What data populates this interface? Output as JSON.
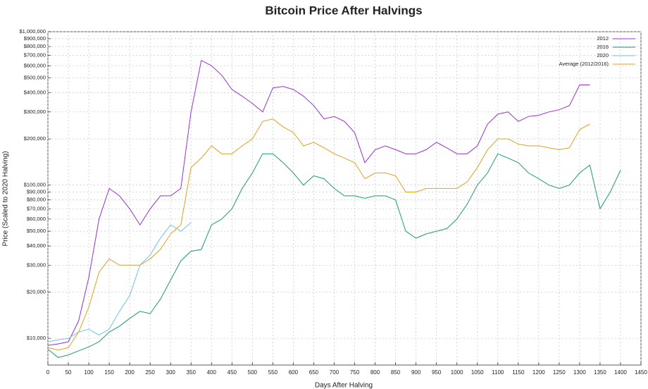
{
  "chart_data": {
    "type": "line",
    "title": "Bitcoin Price After Halvings",
    "x_label": "Days After Halving",
    "y_label": "Price (Scaled to 2020 Halving)",
    "log_y": true,
    "grid": true,
    "legend": "top-right",
    "xlim": [
      0,
      1450
    ],
    "xticks": [
      0,
      50,
      100,
      150,
      200,
      250,
      300,
      350,
      400,
      450,
      500,
      550,
      600,
      650,
      700,
      750,
      800,
      850,
      900,
      950,
      1000,
      1050,
      1100,
      1150,
      1200,
      1250,
      1300,
      1350,
      1400,
      1450
    ],
    "ylim": [
      6700,
      1000000
    ],
    "yticks": [
      {
        "value": 10000,
        "label": "$10,000"
      },
      {
        "value": 20000,
        "label": "$20,000"
      },
      {
        "value": 30000,
        "label": "$30,000"
      },
      {
        "value": 40000,
        "label": "$40,000"
      },
      {
        "value": 50000,
        "label": "$50,000"
      },
      {
        "value": 60000,
        "label": "$60,000"
      },
      {
        "value": 70000,
        "label": "$70,000"
      },
      {
        "value": 80000,
        "label": "$80,000"
      },
      {
        "value": 90000,
        "label": "$90,000"
      },
      {
        "value": 100000,
        "label": "$100,000"
      },
      {
        "value": 200000,
        "label": "$200,000"
      },
      {
        "value": 300000,
        "label": "$300,000"
      },
      {
        "value": 400000,
        "label": "$400,000"
      },
      {
        "value": 500000,
        "label": "$500,000"
      },
      {
        "value": 600000,
        "label": "$600,000"
      },
      {
        "value": 700000,
        "label": "$700,000"
      },
      {
        "value": 800000,
        "label": "$800,000"
      },
      {
        "value": 900000,
        "label": "$900,000"
      },
      {
        "value": 1000000,
        "label": "$1,000,000"
      }
    ],
    "x": [
      0,
      25,
      50,
      75,
      100,
      125,
      150,
      175,
      200,
      225,
      250,
      275,
      300,
      325,
      350,
      375,
      400,
      425,
      450,
      475,
      500,
      525,
      550,
      575,
      600,
      625,
      650,
      675,
      700,
      725,
      750,
      775,
      800,
      825,
      850,
      875,
      900,
      925,
      950,
      975,
      1000,
      1025,
      1050,
      1075,
      1100,
      1125,
      1150,
      1175,
      1200,
      1225,
      1250,
      1275,
      1300,
      1325,
      1350,
      1375,
      1400
    ],
    "series": [
      {
        "name": "2012",
        "color": "#9b30d0",
        "values": [
          9000,
          9200,
          9500,
          13000,
          25000,
          60000,
          95000,
          85000,
          70000,
          55000,
          70000,
          85000,
          85000,
          95000,
          300000,
          650000,
          600000,
          520000,
          420000,
          380000,
          340000,
          300000,
          430000,
          440000,
          420000,
          380000,
          330000,
          270000,
          280000,
          260000,
          220000,
          140000,
          170000,
          180000,
          170000,
          160000,
          160000,
          170000,
          190000,
          175000,
          160000,
          160000,
          180000,
          250000,
          290000,
          300000,
          260000,
          280000,
          285000,
          300000,
          310000,
          330000,
          450000,
          450000,
          null,
          null,
          null
        ]
      },
      {
        "name": "2016",
        "color": "#1a9a78",
        "values": [
          8500,
          7500,
          7800,
          8300,
          8800,
          9500,
          11000,
          12000,
          13500,
          15000,
          14500,
          18000,
          24000,
          32000,
          37000,
          38000,
          55000,
          60000,
          70000,
          95000,
          120000,
          160000,
          160000,
          140000,
          120000,
          100000,
          115000,
          110000,
          95000,
          85000,
          85000,
          82000,
          85000,
          85000,
          80000,
          50000,
          45000,
          48000,
          50000,
          52000,
          60000,
          75000,
          100000,
          120000,
          160000,
          150000,
          140000,
          120000,
          110000,
          100000,
          95000,
          100000,
          120000,
          135000,
          70000,
          90000,
          125000
        ]
      },
      {
        "name": "2020",
        "color": "#6ec3e8",
        "values": [
          9500,
          9800,
          10000,
          11000,
          11500,
          10500,
          11500,
          15000,
          19000,
          30000,
          35000,
          45000,
          55000,
          50000,
          57000,
          null,
          null,
          null,
          null,
          null,
          null,
          null,
          null,
          null,
          null,
          null,
          null,
          null,
          null,
          null,
          null,
          null,
          null,
          null,
          null,
          null,
          null,
          null,
          null,
          null,
          null,
          null,
          null,
          null,
          null,
          null,
          null,
          null,
          null,
          null,
          null,
          null,
          null,
          null,
          null,
          null,
          null
        ]
      },
      {
        "name": "Average (2012/2016)",
        "color": "#e0a020",
        "values": [
          8700,
          8400,
          8700,
          11000,
          16000,
          27000,
          33000,
          30000,
          30000,
          30000,
          33000,
          38000,
          48000,
          55000,
          130000,
          150000,
          180000,
          160000,
          160000,
          180000,
          200000,
          260000,
          270000,
          240000,
          220000,
          180000,
          190000,
          175000,
          160000,
          150000,
          140000,
          110000,
          120000,
          120000,
          115000,
          90000,
          90000,
          95000,
          95000,
          95000,
          95000,
          105000,
          130000,
          170000,
          200000,
          200000,
          185000,
          180000,
          180000,
          175000,
          170000,
          175000,
          230000,
          250000,
          null,
          null,
          null
        ]
      }
    ]
  }
}
